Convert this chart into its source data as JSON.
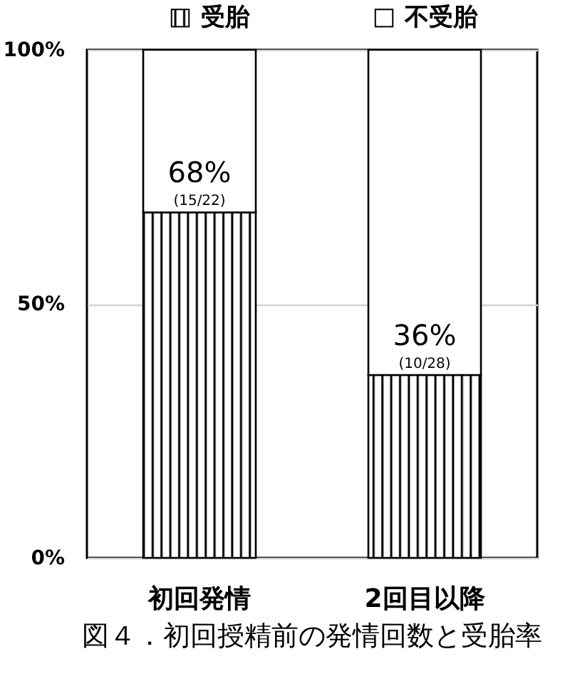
{
  "chart_data": {
    "type": "bar",
    "categories": [
      "初回発情",
      "2回目以降"
    ],
    "series": [
      {
        "name": "受胎",
        "color": "#000000",
        "values": [
          68,
          36
        ],
        "value_labels": [
          "68%",
          "36%"
        ]
      },
      {
        "name": "不受胎",
        "color": "#ffffff",
        "values": [
          32,
          64
        ]
      }
    ],
    "stacked": true,
    "ylim": [
      0,
      100
    ],
    "yticks": [
      {
        "value": 0,
        "label": "0%"
      },
      {
        "value": 50,
        "label": "50%"
      },
      {
        "value": 100,
        "label": "100%"
      }
    ],
    "grid": "y",
    "legend": "top",
    "annotations": [
      {
        "text": "(15/22)",
        "x": "初回発情",
        "y": 68
      },
      {
        "text": "(10/28)",
        "x": "2回目以降",
        "y": 36
      },
      "図４．初回授精前の発情回数と受胎率"
    ]
  }
}
